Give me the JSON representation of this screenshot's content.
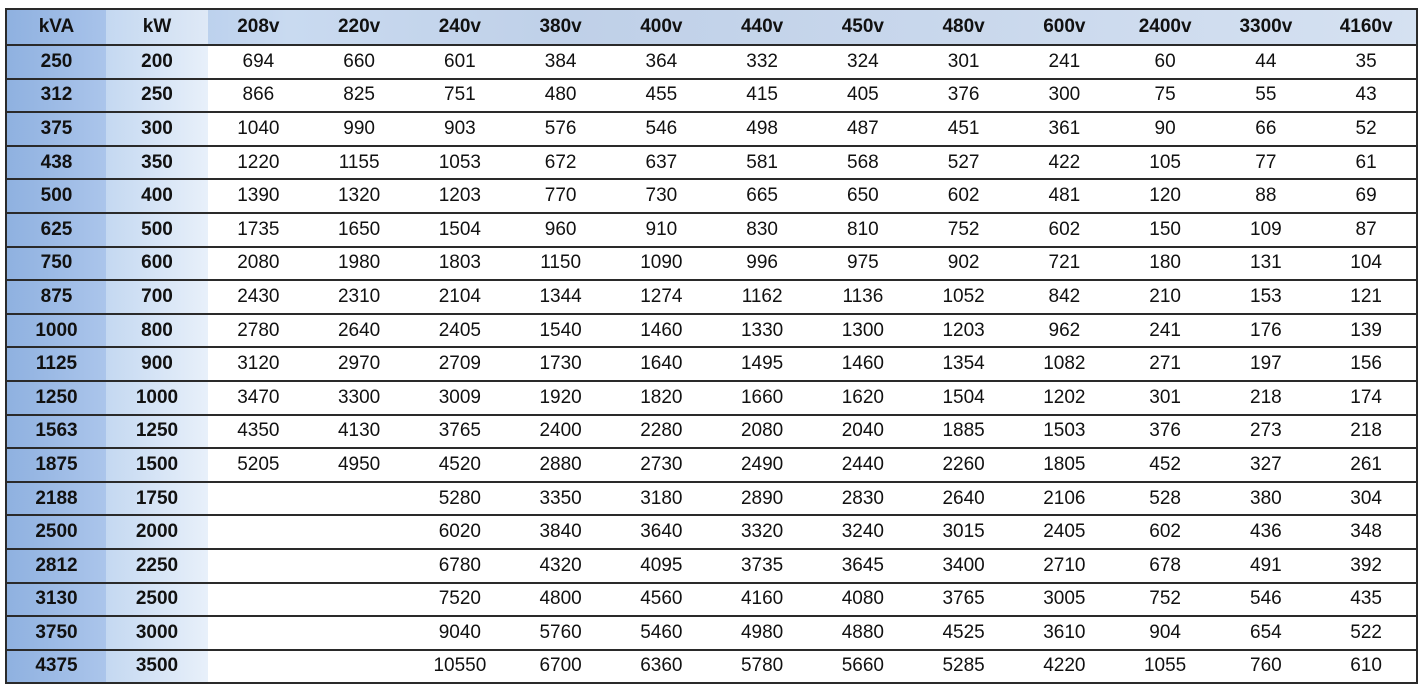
{
  "table": {
    "headers": [
      "kVA",
      "kW",
      "208v",
      "220v",
      "240v",
      "380v",
      "400v",
      "440v",
      "450v",
      "480v",
      "600v",
      "2400v",
      "3300v",
      "4160v"
    ],
    "rows": [
      [
        "250",
        "200",
        "694",
        "660",
        "601",
        "384",
        "364",
        "332",
        "324",
        "301",
        "241",
        "60",
        "44",
        "35"
      ],
      [
        "312",
        "250",
        "866",
        "825",
        "751",
        "480",
        "455",
        "415",
        "405",
        "376",
        "300",
        "75",
        "55",
        "43"
      ],
      [
        "375",
        "300",
        "1040",
        "990",
        "903",
        "576",
        "546",
        "498",
        "487",
        "451",
        "361",
        "90",
        "66",
        "52"
      ],
      [
        "438",
        "350",
        "1220",
        "1155",
        "1053",
        "672",
        "637",
        "581",
        "568",
        "527",
        "422",
        "105",
        "77",
        "61"
      ],
      [
        "500",
        "400",
        "1390",
        "1320",
        "1203",
        "770",
        "730",
        "665",
        "650",
        "602",
        "481",
        "120",
        "88",
        "69"
      ],
      [
        "625",
        "500",
        "1735",
        "1650",
        "1504",
        "960",
        "910",
        "830",
        "810",
        "752",
        "602",
        "150",
        "109",
        "87"
      ],
      [
        "750",
        "600",
        "2080",
        "1980",
        "1803",
        "1150",
        "1090",
        "996",
        "975",
        "902",
        "721",
        "180",
        "131",
        "104"
      ],
      [
        "875",
        "700",
        "2430",
        "2310",
        "2104",
        "1344",
        "1274",
        "1162",
        "1136",
        "1052",
        "842",
        "210",
        "153",
        "121"
      ],
      [
        "1000",
        "800",
        "2780",
        "2640",
        "2405",
        "1540",
        "1460",
        "1330",
        "1300",
        "1203",
        "962",
        "241",
        "176",
        "139"
      ],
      [
        "1125",
        "900",
        "3120",
        "2970",
        "2709",
        "1730",
        "1640",
        "1495",
        "1460",
        "1354",
        "1082",
        "271",
        "197",
        "156"
      ],
      [
        "1250",
        "1000",
        "3470",
        "3300",
        "3009",
        "1920",
        "1820",
        "1660",
        "1620",
        "1504",
        "1202",
        "301",
        "218",
        "174"
      ],
      [
        "1563",
        "1250",
        "4350",
        "4130",
        "3765",
        "2400",
        "2280",
        "2080",
        "2040",
        "1885",
        "1503",
        "376",
        "273",
        "218"
      ],
      [
        "1875",
        "1500",
        "5205",
        "4950",
        "4520",
        "2880",
        "2730",
        "2490",
        "2440",
        "2260",
        "1805",
        "452",
        "327",
        "261"
      ],
      [
        "2188",
        "1750",
        "",
        "",
        "5280",
        "3350",
        "3180",
        "2890",
        "2830",
        "2640",
        "2106",
        "528",
        "380",
        "304"
      ],
      [
        "2500",
        "2000",
        "",
        "",
        "6020",
        "3840",
        "3640",
        "3320",
        "3240",
        "3015",
        "2405",
        "602",
        "436",
        "348"
      ],
      [
        "2812",
        "2250",
        "",
        "",
        "6780",
        "4320",
        "4095",
        "3735",
        "3645",
        "3400",
        "2710",
        "678",
        "491",
        "392"
      ],
      [
        "3130",
        "2500",
        "",
        "",
        "7520",
        "4800",
        "4560",
        "4160",
        "4080",
        "3765",
        "3005",
        "752",
        "546",
        "435"
      ],
      [
        "3750",
        "3000",
        "",
        "",
        "9040",
        "5760",
        "5460",
        "4980",
        "4880",
        "4525",
        "3610",
        "904",
        "654",
        "522"
      ],
      [
        "4375",
        "3500",
        "",
        "",
        "10550",
        "6700",
        "6360",
        "5780",
        "5660",
        "5285",
        "4220",
        "1055",
        "760",
        "610"
      ]
    ]
  }
}
